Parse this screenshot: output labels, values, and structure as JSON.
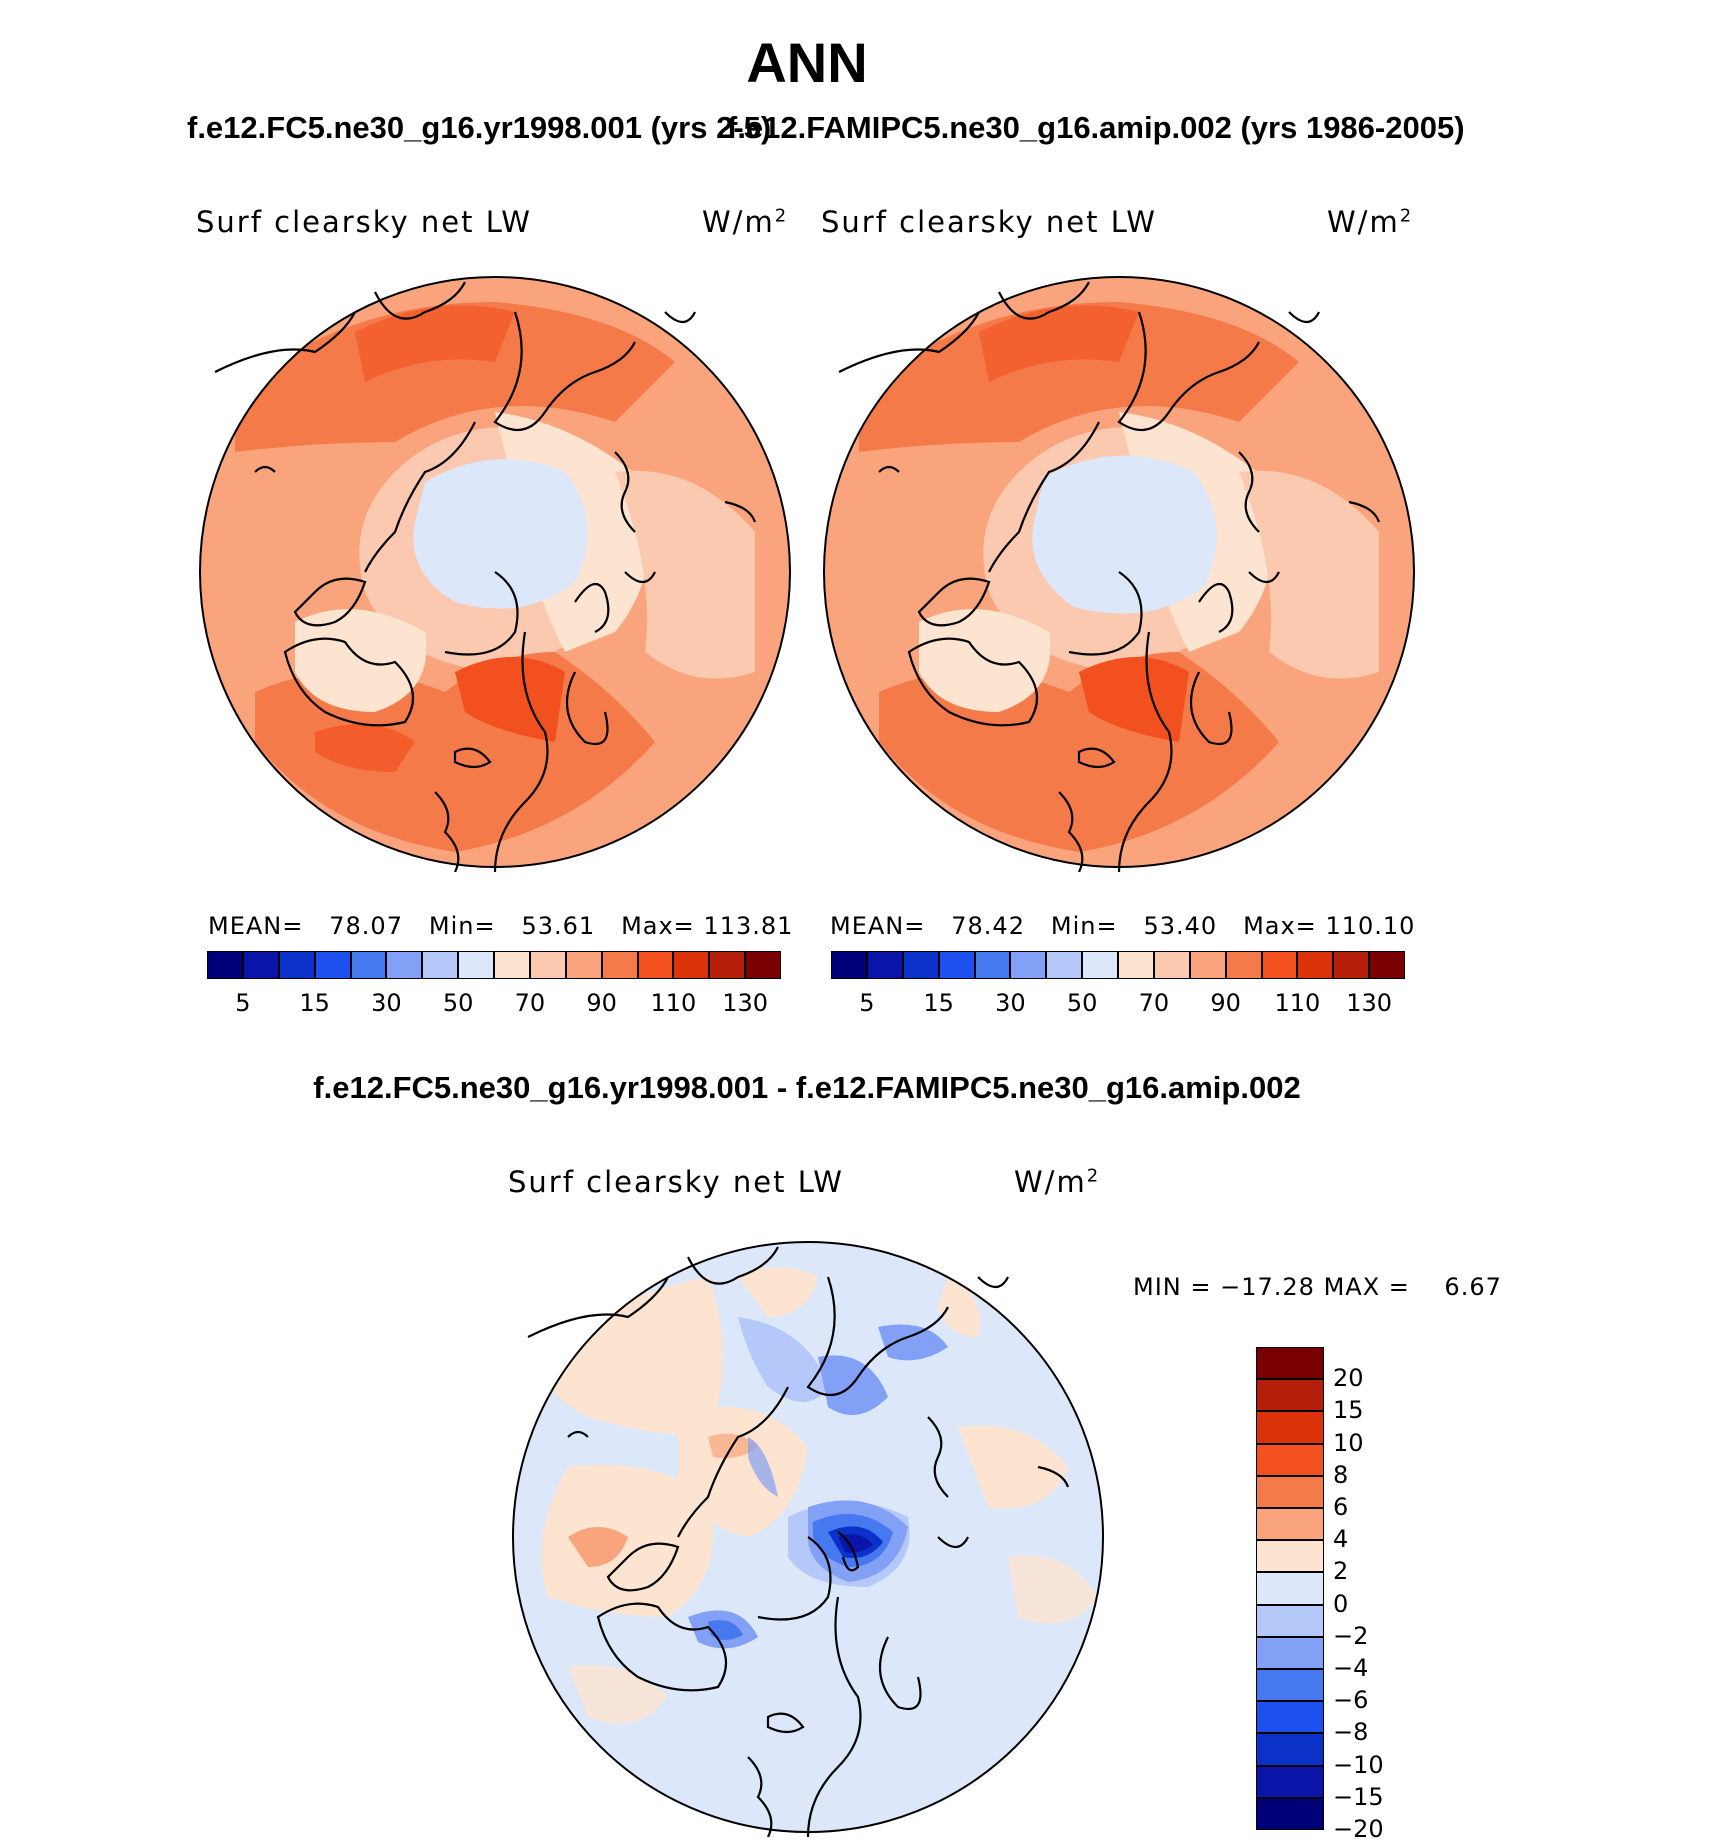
{
  "title": "ANN",
  "panels": [
    {
      "case_title": "f.e12.FC5.ne30_g16.yr1998.001 (yrs 2-5)",
      "variable": "Surf clearsky net LW",
      "units": "W/m",
      "units_exp": "2",
      "stats": {
        "mean_label": "MEAN=",
        "mean": "78.07",
        "min_label": "Min=",
        "min": "53.61",
        "max_label": "Max=",
        "max": "113.81"
      }
    },
    {
      "case_title": "f.e12.FAMIPC5.ne30_g16.amip.002 (yrs 1986-2005)",
      "variable": "Surf clearsky net LW",
      "units": "W/m",
      "units_exp": "2",
      "stats": {
        "mean_label": "MEAN=",
        "mean": "78.42",
        "min_label": "Min=",
        "min": "53.40",
        "max_label": "Max=",
        "max": "110.10"
      }
    }
  ],
  "abs_colorbar": {
    "colors": [
      "#000078",
      "#0a14a8",
      "#0a32c8",
      "#1e50f0",
      "#4678f0",
      "#82a0f5",
      "#b4c8fa",
      "#dce8fa",
      "#fce4d0",
      "#fbc8b0",
      "#f9a47c",
      "#f57a4a",
      "#f2501e",
      "#dc320a",
      "#b41e0a",
      "#780000"
    ],
    "labels": [
      "5",
      "15",
      "30",
      "50",
      "70",
      "90",
      "110",
      "130"
    ]
  },
  "diff": {
    "title": "f.e12.FC5.ne30_g16.yr1998.001 - f.e12.FAMIPC5.ne30_g16.amip.002",
    "variable": "Surf clearsky net LW",
    "units": "W/m",
    "units_exp": "2",
    "min_label": "MIN =",
    "min": "−17.28",
    "max_label": "MAX =",
    "max": "6.67",
    "colorbar": {
      "colors": [
        "#780000",
        "#b41e0a",
        "#dc320a",
        "#f2501e",
        "#f57a4a",
        "#f9a47c",
        "#fce4d0",
        "#dce8fa",
        "#b4c8fa",
        "#82a0f5",
        "#4678f0",
        "#1e50f0",
        "#0a32c8",
        "#0a14a8",
        "#000078"
      ],
      "labels": [
        "20",
        "15",
        "10",
        "8",
        "6",
        "4",
        "2",
        "0",
        "−2",
        "−4",
        "−6",
        "−8",
        "−10",
        "−15",
        "−20"
      ]
    }
  }
}
